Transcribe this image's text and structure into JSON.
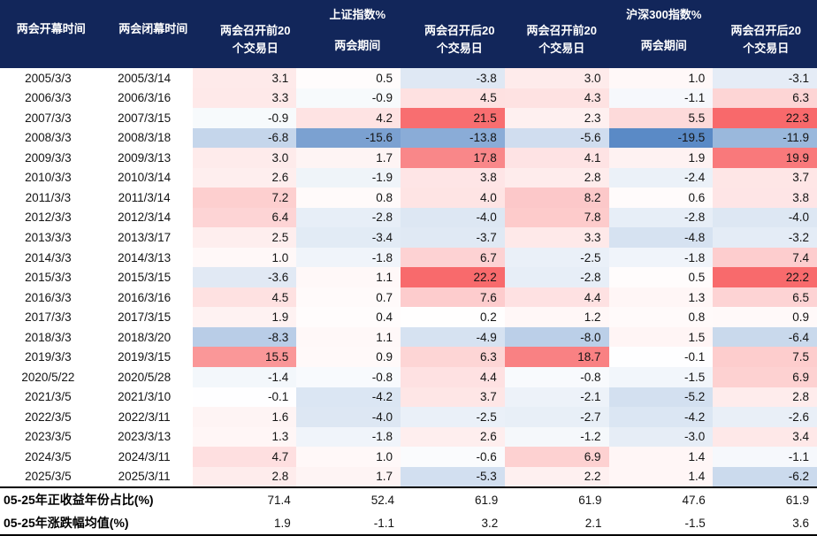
{
  "colors": {
    "header_bg": "#12265A",
    "header_text": "#ffffff",
    "body_text": "#141414",
    "rule_line": "#000000",
    "scale_positive": "#F8696B",
    "scale_mid": "#FFFFFF",
    "scale_negative": "#5A8AC6"
  },
  "chart_data": {
    "type": "table",
    "column_groups": [
      "上证指数%",
      "沪深300指数%"
    ],
    "columns": [
      {
        "lines": [
          "两会开幕时间"
        ],
        "group": null,
        "kind": "date"
      },
      {
        "lines": [
          "两会闭幕时间"
        ],
        "group": null,
        "kind": "date"
      },
      {
        "lines": [
          "两会召开前20",
          "个交易日"
        ],
        "group": null,
        "kind": "value"
      },
      {
        "lines": [
          "两会期间"
        ],
        "group": "上证指数%",
        "kind": "value"
      },
      {
        "lines": [
          "两会召开后20",
          "个交易日"
        ],
        "group": null,
        "kind": "value"
      },
      {
        "lines": [
          "两会召开前20",
          "个交易日"
        ],
        "group": null,
        "kind": "value"
      },
      {
        "lines": [
          "两会期间"
        ],
        "group": "沪深300指数%",
        "kind": "value"
      },
      {
        "lines": [
          "两会召开后20",
          "个交易日"
        ],
        "group": null,
        "kind": "value"
      }
    ],
    "rows": [
      {
        "open": "2005/3/3",
        "close": "2005/3/14",
        "values": [
          3.1,
          0.5,
          -3.8,
          3.0,
          1.0,
          -3.1
        ]
      },
      {
        "open": "2006/3/3",
        "close": "2006/3/16",
        "values": [
          3.3,
          -0.9,
          4.5,
          4.3,
          -1.1,
          6.3
        ]
      },
      {
        "open": "2007/3/3",
        "close": "2007/3/15",
        "values": [
          -0.9,
          4.2,
          21.5,
          2.3,
          5.5,
          22.3
        ]
      },
      {
        "open": "2008/3/3",
        "close": "2008/3/18",
        "values": [
          -6.8,
          -15.6,
          -13.8,
          -5.6,
          -19.5,
          -11.9
        ]
      },
      {
        "open": "2009/3/3",
        "close": "2009/3/13",
        "values": [
          3.0,
          1.7,
          17.8,
          4.1,
          1.9,
          19.9
        ]
      },
      {
        "open": "2010/3/3",
        "close": "2010/3/14",
        "values": [
          2.6,
          -1.9,
          3.8,
          2.8,
          -2.4,
          3.7
        ]
      },
      {
        "open": "2011/3/3",
        "close": "2011/3/14",
        "values": [
          7.2,
          0.8,
          4.0,
          8.2,
          0.6,
          3.8
        ]
      },
      {
        "open": "2012/3/3",
        "close": "2012/3/14",
        "values": [
          6.4,
          -2.8,
          -4.0,
          7.8,
          -2.8,
          -4.0
        ]
      },
      {
        "open": "2013/3/3",
        "close": "2013/3/17",
        "values": [
          2.5,
          -3.4,
          -3.7,
          3.3,
          -4.8,
          -3.2
        ]
      },
      {
        "open": "2014/3/3",
        "close": "2014/3/13",
        "values": [
          1.0,
          -1.8,
          6.7,
          -2.5,
          -1.8,
          7.4
        ]
      },
      {
        "open": "2015/3/3",
        "close": "2015/3/15",
        "values": [
          -3.6,
          1.1,
          22.2,
          -2.8,
          0.5,
          22.2
        ]
      },
      {
        "open": "2016/3/3",
        "close": "2016/3/16",
        "values": [
          4.5,
          0.7,
          7.6,
          4.4,
          1.3,
          6.5
        ]
      },
      {
        "open": "2017/3/3",
        "close": "2017/3/15",
        "values": [
          1.9,
          0.4,
          0.2,
          1.2,
          0.8,
          0.9
        ]
      },
      {
        "open": "2018/3/3",
        "close": "2018/3/20",
        "values": [
          -8.3,
          1.1,
          -4.9,
          -8.0,
          1.5,
          -6.4
        ]
      },
      {
        "open": "2019/3/3",
        "close": "2019/3/15",
        "values": [
          15.5,
          0.9,
          6.3,
          18.7,
          -0.1,
          7.5
        ]
      },
      {
        "open": "2020/5/22",
        "close": "2020/5/28",
        "values": [
          -1.4,
          -0.8,
          4.4,
          -0.8,
          -1.5,
          6.9
        ]
      },
      {
        "open": "2021/3/5",
        "close": "2021/3/10",
        "values": [
          -0.1,
          -4.2,
          3.7,
          -2.1,
          -5.2,
          2.8
        ]
      },
      {
        "open": "2022/3/5",
        "close": "2022/3/11",
        "values": [
          1.6,
          -4.0,
          -2.5,
          -2.7,
          -4.2,
          -2.6
        ]
      },
      {
        "open": "2023/3/5",
        "close": "2023/3/13",
        "values": [
          1.3,
          -1.8,
          2.6,
          -1.2,
          -3.0,
          3.4
        ]
      },
      {
        "open": "2024/3/5",
        "close": "2024/3/11",
        "values": [
          4.7,
          1.0,
          -0.6,
          6.9,
          1.4,
          -1.1
        ]
      },
      {
        "open": "2025/3/5",
        "close": "2025/3/11",
        "values": [
          2.8,
          1.7,
          -5.3,
          2.2,
          1.4,
          -6.2
        ]
      }
    ],
    "summary_rows": [
      {
        "label": "05-25年正收益年份占比(%)",
        "values": [
          71.4,
          52.4,
          61.9,
          61.9,
          47.6,
          61.9
        ]
      },
      {
        "label": "05-25年涨跌幅均值(%)",
        "values": [
          1.9,
          -1.1,
          3.2,
          2.1,
          -1.5,
          3.6
        ]
      }
    ],
    "color_scale": {
      "min": -19.5,
      "mid": 0,
      "max": 22.3
    }
  }
}
